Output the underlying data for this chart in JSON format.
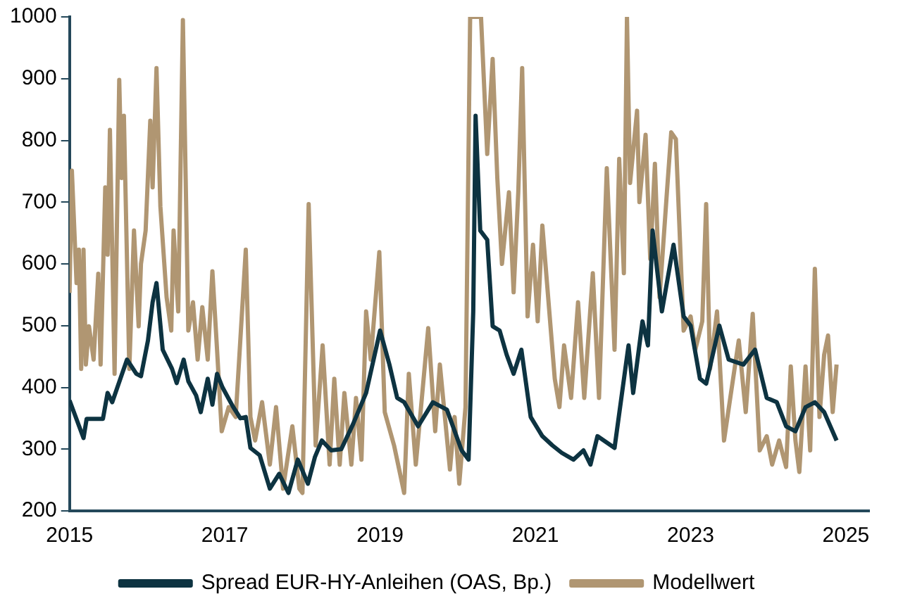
{
  "chart_data": {
    "type": "line",
    "xlim": [
      2015,
      2025.3
    ],
    "xticks": [
      2015,
      2017,
      2019,
      2021,
      2023,
      2025
    ],
    "ylim": [
      200,
      1000
    ],
    "yticks": [
      200,
      300,
      400,
      500,
      600,
      700,
      800,
      900,
      1000
    ],
    "grid": false,
    "legend": "bottom",
    "marker": "none",
    "line_style": "solid",
    "series": [
      {
        "name": "Spread EUR-HY-Anleihen (OAS, Bp.)",
        "color": "#0d3341",
        "x": [
          2015.0,
          2015.18,
          2015.22,
          2015.43,
          2015.49,
          2015.55,
          2015.74,
          2015.86,
          2015.92,
          2016.01,
          2016.07,
          2016.12,
          2016.2,
          2016.32,
          2016.38,
          2016.47,
          2016.53,
          2016.63,
          2016.69,
          2016.78,
          2016.84,
          2016.9,
          2016.97,
          2017.1,
          2017.2,
          2017.27,
          2017.33,
          2017.45,
          2017.58,
          2017.7,
          2017.82,
          2017.94,
          2018.07,
          2018.16,
          2018.25,
          2018.37,
          2018.5,
          2018.65,
          2018.82,
          2019.0,
          2019.12,
          2019.22,
          2019.31,
          2019.49,
          2019.68,
          2019.86,
          2020.05,
          2020.14,
          2020.2,
          2020.23,
          2020.29,
          2020.38,
          2020.45,
          2020.54,
          2020.63,
          2020.72,
          2020.82,
          2020.94,
          2021.09,
          2021.22,
          2021.34,
          2021.49,
          2021.62,
          2021.71,
          2021.8,
          2022.02,
          2022.2,
          2022.26,
          2022.38,
          2022.45,
          2022.51,
          2022.63,
          2022.78,
          2022.91,
          2023.0,
          2023.12,
          2023.2,
          2023.37,
          2023.49,
          2023.68,
          2023.83,
          2023.98,
          2024.11,
          2024.23,
          2024.35,
          2024.48,
          2024.6,
          2024.72,
          2024.88
        ],
        "values": [
          379,
          318,
          349,
          349,
          391,
          376,
          445,
          422,
          418,
          476,
          538,
          569,
          461,
          430,
          407,
          445,
          410,
          387,
          360,
          414,
          372,
          422,
          400,
          370,
          350,
          352,
          302,
          290,
          236,
          260,
          229,
          283,
          244,
          287,
          314,
          298,
          300,
          340,
          391,
          492,
          437,
          383,
          376,
          337,
          376,
          364,
          298,
          283,
          523,
          840,
          654,
          639,
          499,
          492,
          453,
          422,
          461,
          352,
          321,
          306,
          294,
          283,
          298,
          275,
          321,
          302,
          468,
          391,
          507,
          468,
          654,
          523,
          631,
          515,
          500,
          414,
          406,
          500,
          445,
          437,
          461,
          383,
          376,
          337,
          329,
          368,
          376,
          360,
          314
        ]
      },
      {
        "name": "Modellwert",
        "color": "#b09672",
        "x": [
          2015.0,
          2015.03,
          2015.09,
          2015.12,
          2015.15,
          2015.18,
          2015.21,
          2015.25,
          2015.31,
          2015.37,
          2015.4,
          2015.46,
          2015.49,
          2015.52,
          2015.58,
          2015.64,
          2015.67,
          2015.7,
          2015.77,
          2015.83,
          2015.89,
          2015.92,
          2015.98,
          2016.04,
          2016.07,
          2016.12,
          2016.17,
          2016.25,
          2016.31,
          2016.34,
          2016.4,
          2016.46,
          2016.53,
          2016.59,
          2016.65,
          2016.71,
          2016.78,
          2016.84,
          2016.9,
          2016.96,
          2017.05,
          2017.14,
          2017.27,
          2017.33,
          2017.39,
          2017.48,
          2017.58,
          2017.66,
          2017.75,
          2017.87,
          2017.96,
          2018.0,
          2018.08,
          2018.17,
          2018.26,
          2018.35,
          2018.41,
          2018.48,
          2018.54,
          2018.63,
          2018.69,
          2018.76,
          2018.82,
          2018.88,
          2018.99,
          2019.06,
          2019.18,
          2019.31,
          2019.37,
          2019.46,
          2019.62,
          2019.71,
          2019.77,
          2019.9,
          2019.96,
          2020.02,
          2020.1,
          2020.16,
          2020.3,
          2020.38,
          2020.45,
          2020.51,
          2020.57,
          2020.66,
          2020.72,
          2020.78,
          2020.83,
          2020.9,
          2020.97,
          2021.03,
          2021.09,
          2021.15,
          2021.25,
          2021.31,
          2021.37,
          2021.46,
          2021.55,
          2021.63,
          2021.74,
          2021.82,
          2021.92,
          2022.02,
          2022.08,
          2022.14,
          2022.18,
          2022.22,
          2022.31,
          2022.34,
          2022.42,
          2022.48,
          2022.54,
          2022.6,
          2022.69,
          2022.75,
          2022.81,
          2022.91,
          2023.0,
          2023.06,
          2023.15,
          2023.2,
          2023.25,
          2023.34,
          2023.43,
          2023.52,
          2023.62,
          2023.71,
          2023.8,
          2023.89,
          2023.98,
          2024.05,
          2024.14,
          2024.23,
          2024.29,
          2024.35,
          2024.4,
          2024.48,
          2024.54,
          2024.6,
          2024.66,
          2024.72,
          2024.77,
          2024.83,
          2024.88
        ],
        "values": [
          553,
          751,
          569,
          623,
          430,
          623,
          437,
          499,
          445,
          584,
          437,
          724,
          615,
          817,
          422,
          898,
          739,
          840,
          430,
          654,
          499,
          600,
          654,
          832,
          724,
          917,
          693,
          546,
          492,
          654,
          523,
          995,
          492,
          538,
          445,
          530,
          445,
          588,
          461,
          329,
          368,
          352,
          623,
          352,
          314,
          376,
          275,
          368,
          236,
          337,
          236,
          229,
          697,
          306,
          468,
          275,
          414,
          275,
          391,
          275,
          383,
          283,
          523,
          445,
          619,
          360,
          306,
          229,
          422,
          275,
          496,
          329,
          437,
          267,
          352,
          244,
          368,
          1000,
          1000,
          778,
          932,
          739,
          600,
          716,
          554,
          716,
          917,
          515,
          631,
          507,
          662,
          569,
          414,
          368,
          468,
          383,
          538,
          383,
          585,
          383,
          755,
          461,
          770,
          585,
          1000,
          731,
          848,
          700,
          809,
          608,
          762,
          546,
          708,
          813,
          802,
          492,
          515,
          461,
          507,
          697,
          430,
          523,
          314,
          391,
          476,
          360,
          519,
          298,
          321,
          275,
          314,
          271,
          434,
          314,
          263,
          434,
          298,
          592,
          352,
          453,
          484,
          360,
          437
        ]
      }
    ]
  }
}
